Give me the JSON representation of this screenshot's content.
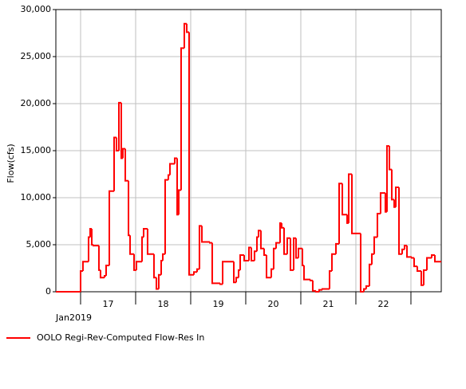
{
  "chart_data": {
    "type": "line",
    "drawstyle": "steps-post",
    "ylabel": "Flow(cfs)",
    "xlabel": "Jan2019",
    "xlim": [
      16.551,
      23.551
    ],
    "xticks": [
      17,
      18,
      19,
      20,
      21,
      22,
      {
        "value": 23,
        "label": null
      }
    ],
    "ylim": [
      0,
      30000
    ],
    "yticks": [
      0,
      {
        "value": 5000,
        "label": "5,000"
      },
      {
        "value": 10000,
        "label": "10,000"
      },
      {
        "value": 15000,
        "label": "15,000"
      },
      {
        "value": 20000,
        "label": "20,000"
      },
      {
        "value": 25000,
        "label": "25,000"
      },
      {
        "value": 30000,
        "label": "30,000"
      }
    ],
    "grid": true,
    "legend": "bottom-left",
    "x": [
      16.551,
      17.0,
      17.043,
      17.145,
      17.174,
      17.203,
      17.232,
      17.333,
      17.362,
      17.435,
      17.464,
      17.522,
      17.609,
      17.652,
      17.696,
      17.739,
      17.768,
      17.812,
      17.87,
      17.899,
      17.971,
      18.014,
      18.116,
      18.145,
      18.217,
      18.333,
      18.377,
      18.42,
      18.464,
      18.493,
      18.536,
      18.594,
      18.623,
      18.71,
      18.754,
      18.783,
      18.826,
      18.884,
      18.928,
      18.971,
      19.058,
      19.116,
      19.159,
      19.203,
      19.348,
      19.391,
      19.536,
      19.58,
      19.783,
      19.826,
      19.87,
      19.899,
      19.971,
      20.058,
      20.101,
      20.159,
      20.203,
      20.232,
      20.275,
      20.333,
      20.377,
      20.464,
      20.507,
      20.551,
      20.623,
      20.652,
      20.696,
      20.754,
      20.812,
      20.87,
      20.913,
      20.957,
      21.029,
      21.058,
      21.174,
      21.217,
      21.275,
      21.333,
      21.391,
      21.522,
      21.565,
      21.638,
      21.696,
      21.754,
      21.841,
      21.87,
      21.928,
      22.087,
      22.145,
      22.188,
      22.246,
      22.29,
      22.333,
      22.391,
      22.449,
      22.536,
      22.565,
      22.609,
      22.652,
      22.696,
      22.725,
      22.783,
      22.841,
      22.884,
      22.928,
      23.014,
      23.058,
      23.116,
      23.188,
      23.232,
      23.29,
      23.377,
      23.435,
      23.551
    ],
    "series": [
      {
        "name": "OOLO Regi-Rev-Computed Flow-Res In",
        "color": "#ff0000",
        "values": [
          0,
          2200,
          3200,
          5800,
          6700,
          5000,
          4900,
          2300,
          1500,
          1700,
          2800,
          10700,
          16400,
          15000,
          20100,
          14200,
          15200,
          11800,
          6000,
          4000,
          2300,
          3200,
          5800,
          6700,
          4000,
          1500,
          300,
          1800,
          3300,
          4000,
          11900,
          12400,
          13600,
          14200,
          8200,
          10800,
          25900,
          28500,
          27600,
          1800,
          2100,
          2400,
          7000,
          5300,
          5200,
          900,
          800,
          3200,
          1000,
          1500,
          2300,
          3900,
          3300,
          4700,
          3300,
          4300,
          5800,
          6500,
          4600,
          3900,
          1500,
          2400,
          4600,
          5200,
          7300,
          6800,
          4000,
          5700,
          2300,
          5700,
          3600,
          4600,
          2800,
          1300,
          1200,
          100,
          0,
          200,
          300,
          2200,
          4000,
          5100,
          11500,
          8200,
          7300,
          12500,
          6200,
          0,
          300,
          600,
          2900,
          4000,
          5800,
          8300,
          10500,
          8500,
          15500,
          13000,
          9800,
          9000,
          11100,
          4000,
          4500,
          4900,
          3700,
          3600,
          2700,
          2200,
          700,
          2300,
          3600,
          3900,
          3200,
          3200
        ]
      }
    ]
  }
}
